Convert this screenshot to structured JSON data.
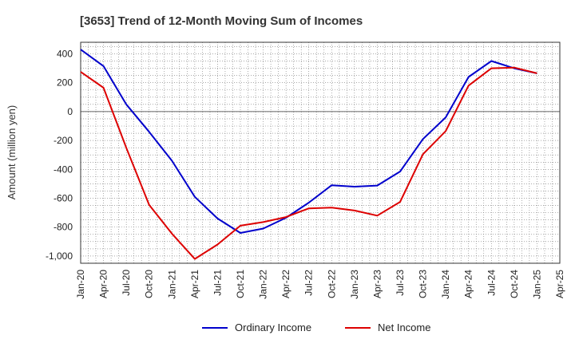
{
  "chart_data": {
    "type": "line",
    "title": "[3653]  Trend of 12-Month Moving Sum of Incomes",
    "xlabel": "",
    "ylabel": "Amount (million yen)",
    "categories": [
      "Jan-20",
      "Apr-20",
      "Jul-20",
      "Oct-20",
      "Jan-21",
      "Apr-21",
      "Jul-21",
      "Oct-21",
      "Jan-22",
      "Apr-22",
      "Jul-22",
      "Oct-22",
      "Jan-23",
      "Apr-23",
      "Jul-23",
      "Oct-23",
      "Jan-24",
      "Apr-24",
      "Jul-24",
      "Oct-24",
      "Jan-25",
      "Apr-25"
    ],
    "yticks": [
      400,
      200,
      0,
      -200,
      -400,
      -600,
      -800,
      -1000
    ],
    "ytick_labels": [
      "400",
      "200",
      "0",
      "-200",
      "-400",
      "-600",
      "-800",
      "-1,000"
    ],
    "ylim": [
      -1050,
      480
    ],
    "grid": true,
    "legend_position": "bottom-center",
    "series": [
      {
        "name": "Ordinary Income",
        "color": "#0000cc",
        "values": [
          430,
          315,
          50,
          -140,
          -340,
          -590,
          -740,
          -840,
          -810,
          -735,
          -630,
          -510,
          -520,
          -512,
          -415,
          -190,
          -40,
          240,
          350,
          300,
          265,
          null
        ]
      },
      {
        "name": "Net Income",
        "color": "#dd0000",
        "values": [
          275,
          165,
          -250,
          -645,
          -845,
          -1020,
          -920,
          -790,
          -765,
          -730,
          -670,
          -665,
          -685,
          -720,
          -625,
          -295,
          -135,
          180,
          300,
          305,
          265,
          null
        ]
      }
    ]
  }
}
